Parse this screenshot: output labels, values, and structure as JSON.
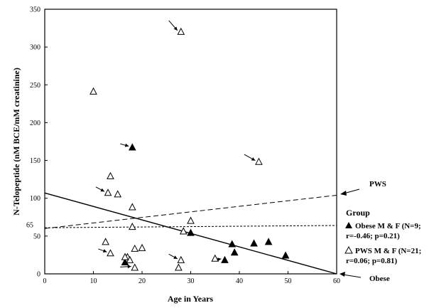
{
  "chart_data": {
    "type": "scatter",
    "xlabel": "Age in Years",
    "ylabel": "N-Telopeptide (nM BCE/mM creatinine)",
    "xlim": [
      0,
      60
    ],
    "ylim": [
      0,
      350
    ],
    "x_ticks": [
      "0",
      "10",
      "20",
      "30",
      "40",
      "50",
      "60"
    ],
    "y_ticks": [
      "0",
      "50",
      "100",
      "150",
      "200",
      "250",
      "300",
      "350"
    ],
    "y_extra_tick": {
      "label": "65",
      "value": 65
    },
    "grid": false,
    "legend_placement": "right",
    "legend": {
      "title": "Group",
      "entries": [
        {
          "marker": "filled-triangle",
          "line1": "Obese M & F (N=9;",
          "line2": "r=-0.46; p=0.21)"
        },
        {
          "marker": "open-triangle",
          "line1": "PWS M & F (N=21;",
          "line2": "r=0.06; p=0.81)"
        }
      ]
    },
    "series": [
      {
        "marker": "filled-triangle",
        "points": [
          {
            "x": 18,
            "y": 167
          },
          {
            "x": 16.5,
            "y": 15
          },
          {
            "x": 30,
            "y": 54
          },
          {
            "x": 37,
            "y": 18
          },
          {
            "x": 38.5,
            "y": 39
          },
          {
            "x": 39,
            "y": 28
          },
          {
            "x": 43,
            "y": 40
          },
          {
            "x": 46,
            "y": 42
          },
          {
            "x": 49.5,
            "y": 24
          }
        ]
      },
      {
        "marker": "open-triangle",
        "points": [
          {
            "x": 28,
            "y": 320
          },
          {
            "x": 10,
            "y": 241
          },
          {
            "x": 44,
            "y": 148
          },
          {
            "x": 13.5,
            "y": 129
          },
          {
            "x": 13,
            "y": 107
          },
          {
            "x": 15,
            "y": 105
          },
          {
            "x": 18,
            "y": 88
          },
          {
            "x": 12.5,
            "y": 42
          },
          {
            "x": 13.5,
            "y": 27
          },
          {
            "x": 17,
            "y": 22
          },
          {
            "x": 17.5,
            "y": 18
          },
          {
            "x": 18.5,
            "y": 33
          },
          {
            "x": 18.5,
            "y": 8
          },
          {
            "x": 20,
            "y": 34
          },
          {
            "x": 18,
            "y": 62
          },
          {
            "x": 28.5,
            "y": 56
          },
          {
            "x": 30,
            "y": 70
          },
          {
            "x": 28,
            "y": 18
          },
          {
            "x": 27.5,
            "y": 8
          },
          {
            "x": 35,
            "y": 20
          },
          {
            "x": 16.5,
            "y": 22
          }
        ]
      }
    ],
    "lines": [
      {
        "style": "solid",
        "from": [
          0,
          107
        ],
        "to": [
          60,
          0
        ]
      },
      {
        "style": "long-dash",
        "from": [
          0,
          60
        ],
        "to": [
          60,
          104
        ]
      },
      {
        "style": "short-dash",
        "from": [
          0,
          61
        ],
        "to": [
          60,
          64
        ]
      }
    ],
    "annotations": [
      {
        "text": "PWS",
        "arrow_to": [
          60,
          104
        ]
      },
      {
        "text": "Obese",
        "arrow_to": [
          60,
          0
        ]
      }
    ],
    "arrows_to_points": [
      {
        "from": [
          25.5,
          335
        ],
        "to": [
          28,
          320
        ]
      },
      {
        "from": [
          15.5,
          172
        ],
        "to": [
          18,
          167
        ]
      },
      {
        "from": [
          41,
          158
        ],
        "to": [
          44,
          148
        ]
      },
      {
        "from": [
          10.5,
          115
        ],
        "to": [
          13,
          107
        ]
      },
      {
        "from": [
          11,
          33
        ],
        "to": [
          13.5,
          27
        ]
      },
      {
        "from": [
          25.5,
          26
        ],
        "to": [
          28,
          18
        ]
      },
      {
        "from": [
          15.5,
          9
        ],
        "to": [
          18.5,
          8
        ]
      },
      {
        "from": [
          34.5,
          18
        ],
        "to": [
          37,
          18
        ]
      }
    ]
  }
}
